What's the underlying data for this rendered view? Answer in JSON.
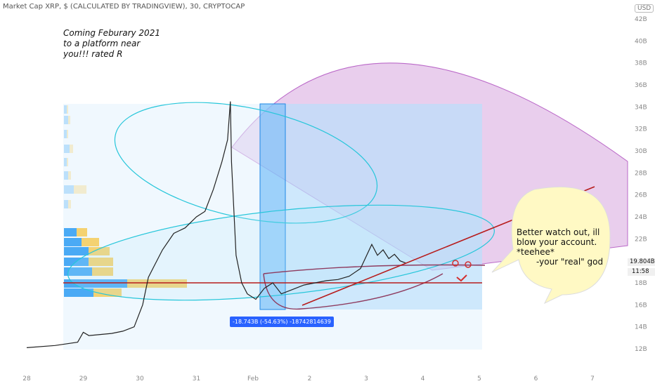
{
  "header": {
    "title": "Market Cap XRP, $ (CALCULATED BY TRADINGVIEW), 30, CRYPTOCAP",
    "currency": "USD"
  },
  "annotation_note": {
    "lines": [
      "Coming Feburary 2021",
      "to a platform near",
      "you!!! rated R"
    ]
  },
  "speech_bubble": {
    "lines": [
      "Better watch out, ill",
      "blow your account.",
      "*teehee*",
      "-your \"real\" god"
    ]
  },
  "measure_label": "-18.743B (-54.63%) -18742814639",
  "price_tag": "19.804B",
  "time_tag": "11:58",
  "colors": {
    "price_line": "#b71c1c",
    "ellipse": "#26c6da",
    "fan": "#ce93d8",
    "measure_box": "#2962ff",
    "volume_profile_up": "#2196f3",
    "volume_profile_down": "#f5c542",
    "bubble": "#fff9c4"
  },
  "chart_data": {
    "type": "line",
    "title": "Market Cap XRP, $ (CALCULATED BY TRADINGVIEW), 30, CRYPTOCAP",
    "xlabel": "",
    "ylabel": "",
    "ylim": [
      11,
      43
    ],
    "y_unit": "B",
    "y_ticks": [
      "12B",
      "14B",
      "16B",
      "18B",
      "20B",
      "22B",
      "24B",
      "26B",
      "28B",
      "30B",
      "32B",
      "34B",
      "36B",
      "38B",
      "40B",
      "42B"
    ],
    "x_ticks": [
      "28",
      "29",
      "30",
      "31",
      "Feb",
      "2",
      "3",
      "4",
      "5",
      "6",
      "7"
    ],
    "series": [
      {
        "x": [
          0,
          0.5,
          0.9,
          1.0,
          1.1,
          1.3,
          1.5,
          1.7,
          1.9,
          2.05,
          2.15,
          2.25,
          2.4,
          2.6,
          2.8,
          3.0,
          3.15,
          3.3,
          3.45,
          3.55,
          3.6,
          3.62,
          3.7,
          3.8,
          3.9,
          4.05,
          4.2,
          4.35,
          4.5,
          4.7,
          4.9,
          5.1,
          5.3,
          5.5,
          5.7,
          5.9,
          6.1,
          6.2,
          6.3,
          6.4,
          6.5,
          6.6,
          6.7
        ],
        "values": [
          12.1,
          12.3,
          12.6,
          13.5,
          13.2,
          13.3,
          13.4,
          13.6,
          14.0,
          16.0,
          18.5,
          19.5,
          21.0,
          22.5,
          23.0,
          24.0,
          24.5,
          26.5,
          29.0,
          31.0,
          34.5,
          29.0,
          20.5,
          18.0,
          17.0,
          16.5,
          17.5,
          18.0,
          17.0,
          17.4,
          17.8,
          18.0,
          18.2,
          18.3,
          18.6,
          19.3,
          21.5,
          20.5,
          21.0,
          20.2,
          20.6,
          20.0,
          19.8
        ]
      }
    ],
    "grid": false,
    "horizontal_line": 18.0
  }
}
